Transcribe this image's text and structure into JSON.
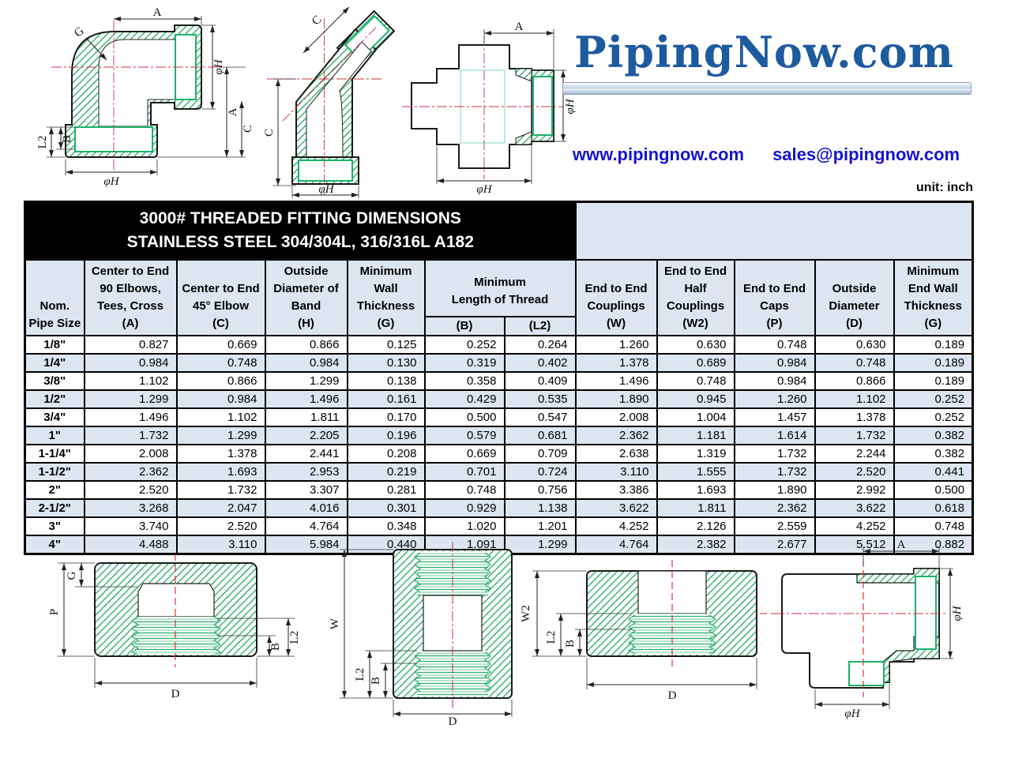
{
  "logo": {
    "text": "PipingNow.com",
    "website": "www.pipingnow.com",
    "email": "sales@pipingnow.com"
  },
  "unit_label": "unit: inch",
  "table": {
    "title_line1": "3000# THREADED FITTING DIMENSIONS",
    "title_line2": "STAINLESS STEEL 304/304L, 316/316L  A182",
    "headers": {
      "nom": "Nom.\nPipe Size",
      "a": "Center to End\n90 Elbows,\nTees, Cross\n(A)",
      "c": "Center to End\n45° Elbow\n(C)",
      "h": "Outside\nDiameter of\nBand\n(H)",
      "g": "Minimum\nWall\nThickness\n(G)",
      "thread": "Minimum\nLength of Thread",
      "thread_b": "(B)",
      "thread_l2": "(L2)",
      "w": "End to End\nCouplings\n(W)",
      "w2": "End to End\nHalf\nCouplings\n(W2)",
      "p": "End to End\nCaps\n(P)",
      "d": "Outside\nDiameter\n(D)",
      "g2": "Minimum\nEnd Wall\nThickness\n(G)"
    },
    "rows": [
      [
        "1/8\"",
        "0.827",
        "0.669",
        "0.866",
        "0.125",
        "0.252",
        "0.264",
        "1.260",
        "0.630",
        "0.748",
        "0.630",
        "0.189"
      ],
      [
        "1/4\"",
        "0.984",
        "0.748",
        "0.984",
        "0.130",
        "0.319",
        "0.402",
        "1.378",
        "0.689",
        "0.984",
        "0.748",
        "0.189"
      ],
      [
        "3/8\"",
        "1.102",
        "0.866",
        "1.299",
        "0.138",
        "0.358",
        "0.409",
        "1.496",
        "0.748",
        "0.984",
        "0.866",
        "0.189"
      ],
      [
        "1/2\"",
        "1.299",
        "0.984",
        "1.496",
        "0.161",
        "0.429",
        "0.535",
        "1.890",
        "0.945",
        "1.260",
        "1.102",
        "0.252"
      ],
      [
        "3/4\"",
        "1.496",
        "1.102",
        "1.811",
        "0.170",
        "0.500",
        "0.547",
        "2.008",
        "1.004",
        "1.457",
        "1.378",
        "0.252"
      ],
      [
        "1\"",
        "1.732",
        "1.299",
        "2.205",
        "0.196",
        "0.579",
        "0.681",
        "2.362",
        "1.181",
        "1.614",
        "1.732",
        "0.382"
      ],
      [
        "1-1/4\"",
        "2.008",
        "1.378",
        "2.441",
        "0.208",
        "0.669",
        "0.709",
        "2.638",
        "1.319",
        "1.732",
        "2.244",
        "0.382"
      ],
      [
        "1-1/2\"",
        "2.362",
        "1.693",
        "2.953",
        "0.219",
        "0.701",
        "0.724",
        "3.110",
        "1.555",
        "1.732",
        "2.520",
        "0.441"
      ],
      [
        "2\"",
        "2.520",
        "1.732",
        "3.307",
        "0.281",
        "0.748",
        "0.756",
        "3.386",
        "1.693",
        "1.890",
        "2.992",
        "0.500"
      ],
      [
        "2-1/2\"",
        "3.268",
        "2.047",
        "4.016",
        "0.301",
        "0.929",
        "1.138",
        "3.622",
        "1.811",
        "2.362",
        "3.622",
        "0.618"
      ],
      [
        "3\"",
        "3.740",
        "2.520",
        "4.764",
        "0.348",
        "1.020",
        "1.201",
        "4.252",
        "2.126",
        "2.559",
        "4.252",
        "0.748"
      ],
      [
        "4\"",
        "4.488",
        "3.110",
        "5.984",
        "0.440",
        "1.091",
        "1.299",
        "4.764",
        "2.382",
        "2.677",
        "5.512",
        "0.882"
      ]
    ]
  },
  "drawings": {
    "elbow90": {
      "a_top": "A",
      "g": "G",
      "phi_h_right": "φH",
      "a_right": "A",
      "c_right": "C",
      "l2": "L2",
      "b": "B",
      "phi_h_bottom": "φH"
    },
    "elbow45": {
      "c_diag": "C",
      "c_left": "C",
      "phi_h_bottom": "φH"
    },
    "cross": {
      "a_top": "A",
      "phi_h_right": "φH",
      "phi_h_bottom": "φH"
    },
    "cap": {
      "g": "G",
      "p": "P",
      "l2": "L2",
      "b": "B",
      "d": "D"
    },
    "coupling": {
      "w": "W",
      "l2": "L2",
      "b": "B",
      "d": "D"
    },
    "half_coupling": {
      "w2": "W2",
      "l2": "L2",
      "b": "B",
      "d": "D"
    },
    "tee": {
      "a": "A",
      "phi_h_right": "φH",
      "phi_h_bottom": "φH"
    }
  },
  "colors": {
    "hatch_green": "#3bb273",
    "socket_green": "#1db26b",
    "centerline_red": "#cc3344",
    "stripe_blue": "#dce6f1",
    "logo_blue": "#1e5a9e",
    "link_blue": "#1513cd",
    "title_bg": "#000000"
  }
}
